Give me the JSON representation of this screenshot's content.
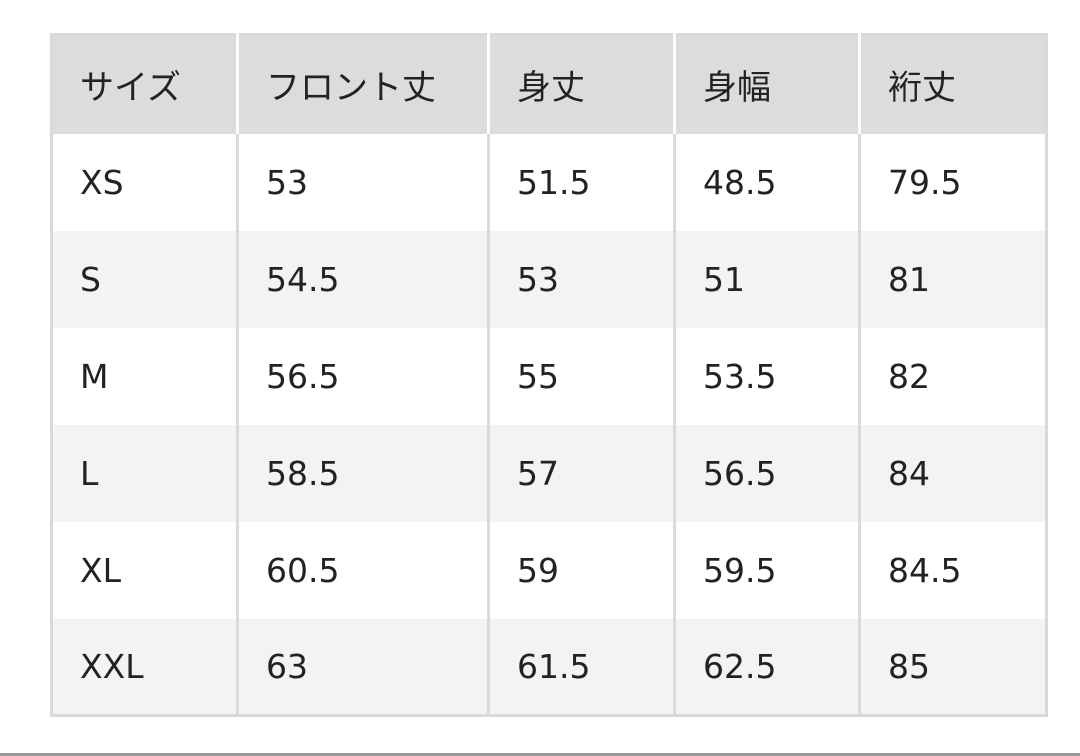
{
  "table": {
    "headers": [
      "サイズ",
      "フロント丈",
      "身丈",
      "身幅",
      "裄丈"
    ],
    "rows": [
      [
        "XS",
        "53",
        "51.5",
        "48.5",
        "79.5"
      ],
      [
        "S",
        "54.5",
        "53",
        "51",
        "81"
      ],
      [
        "M",
        "56.5",
        "55",
        "53.5",
        "82"
      ],
      [
        "L",
        "58.5",
        "57",
        "56.5",
        "84"
      ],
      [
        "XL",
        "60.5",
        "59",
        "59.5",
        "84.5"
      ],
      [
        "XXL",
        "63",
        "61.5",
        "62.5",
        "85"
      ]
    ]
  },
  "colors": {
    "header_bg": "#dcdcdc",
    "stripe_bg": "#f3f3f3",
    "border": "#d9d9d9"
  }
}
